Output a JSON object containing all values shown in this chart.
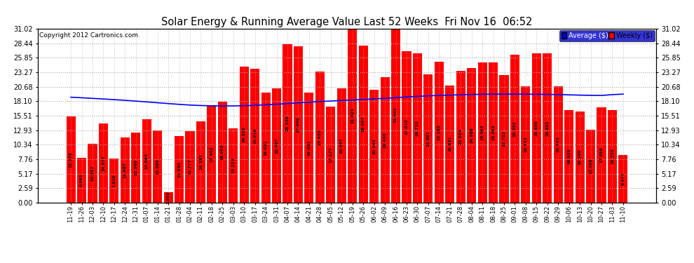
{
  "title": "Solar Energy & Running Average Value Last 52 Weeks  Fri Nov 16  06:52",
  "copyright": "Copyright 2012 Cartronics.com",
  "background_color": "#ffffff",
  "plot_bg_color": "#ffffff",
  "bar_color": "#ff0000",
  "avg_line_color": "#0000ff",
  "yticks": [
    0.0,
    2.59,
    5.17,
    7.76,
    10.34,
    12.93,
    15.51,
    18.1,
    20.68,
    23.27,
    25.85,
    28.44,
    31.02
  ],
  "grid_color": "#aaaaaa",
  "categories": [
    "11-19",
    "11-26",
    "12-03",
    "12-10",
    "12-17",
    "12-24",
    "12-31",
    "01-07",
    "01-14",
    "01-21",
    "01-28",
    "02-04",
    "02-11",
    "02-18",
    "02-25",
    "03-03",
    "03-10",
    "03-17",
    "03-24",
    "03-31",
    "04-07",
    "04-14",
    "04-21",
    "04-28",
    "05-05",
    "05-12",
    "05-19",
    "05-26",
    "06-02",
    "06-09",
    "06-16",
    "06-23",
    "06-30",
    "07-07",
    "07-14",
    "07-21",
    "07-28",
    "08-04",
    "08-11",
    "08-18",
    "08-25",
    "09-01",
    "09-08",
    "09-15",
    "09-22",
    "09-29",
    "10-06",
    "10-13",
    "10-20",
    "10-27",
    "11-03",
    "11-10"
  ],
  "values": [
    15.378,
    8.043,
    10.557,
    14.077,
    7.826,
    11.687,
    12.56,
    14.864,
    12.885,
    1.802,
    11.84,
    12.777,
    14.557,
    17.402,
    18.002,
    13.223,
    24.32,
    23.91,
    19.621,
    20.457,
    28.356,
    27.906,
    19.651,
    23.435,
    17.177,
    20.447,
    31.024,
    28.057,
    20.144,
    22.435,
    31.441,
    27.018,
    26.722,
    22.891,
    25.185,
    20.951,
    23.584,
    24.088,
    25.063,
    25.063,
    22.733,
    26.393,
    20.743,
    26.666,
    26.692,
    20.743,
    16.535,
    16.269,
    13.008,
    17.068,
    16.555,
    8.477
  ],
  "avg_values": [
    18.82,
    18.72,
    18.61,
    18.5,
    18.39,
    18.26,
    18.12,
    17.98,
    17.83,
    17.68,
    17.54,
    17.42,
    17.33,
    17.28,
    17.26,
    17.26,
    17.3,
    17.37,
    17.46,
    17.56,
    17.68,
    17.82,
    17.94,
    18.05,
    18.14,
    18.22,
    18.32,
    18.42,
    18.52,
    18.62,
    18.74,
    18.86,
    18.97,
    19.06,
    19.14,
    19.2,
    19.26,
    19.3,
    19.34,
    19.36,
    19.37,
    19.37,
    19.36,
    19.34,
    19.32,
    19.28,
    19.24,
    19.19,
    19.15,
    19.13,
    19.28,
    19.38
  ],
  "legend_avg_bg": "#0000cc",
  "legend_weekly_bg": "#ff0000",
  "legend_avg_label": "Average ($)",
  "legend_weekly_label": "Weekly ($)"
}
